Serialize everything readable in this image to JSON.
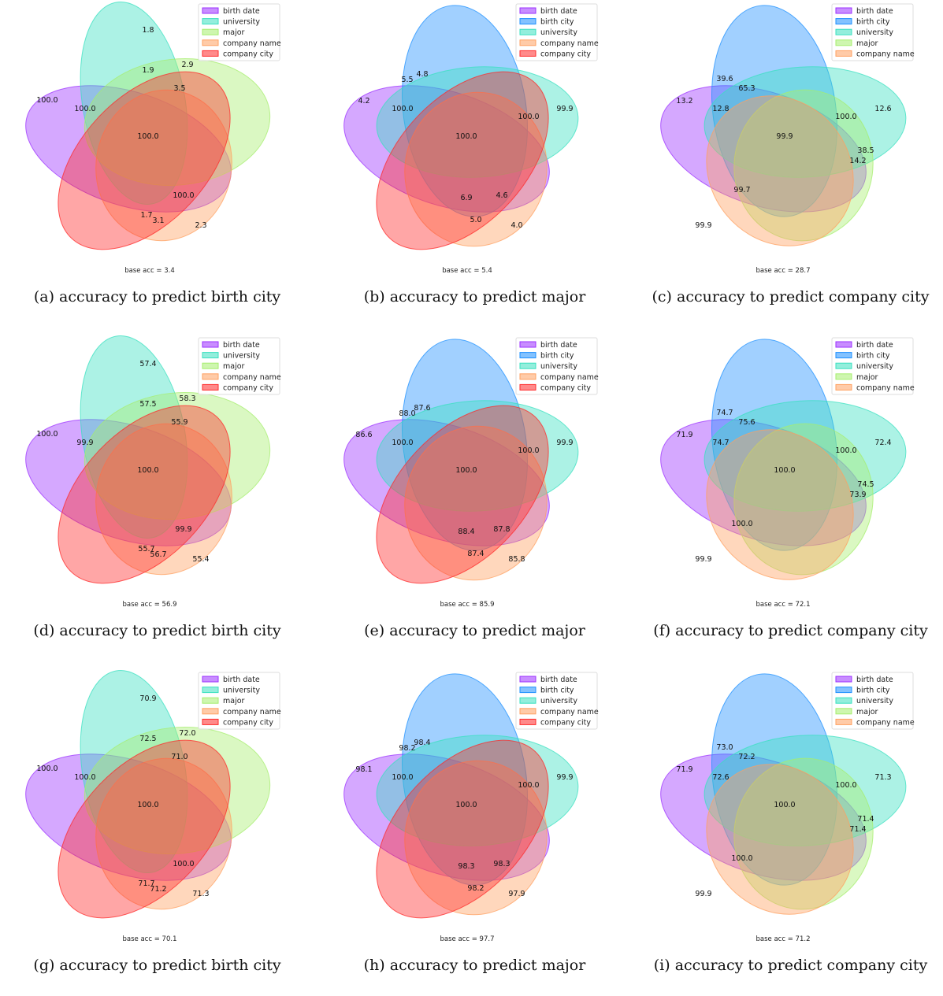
{
  "colors": {
    "birth date": "#9b30ff",
    "birth city": "#1e90ff",
    "university": "#3ae0c0",
    "major": "#a6ee6e",
    "company name": "#ffa060",
    "company city": "#ff2a2a"
  },
  "chart_data": [
    {
      "type": "venn",
      "variant": "A",
      "legend": [
        "birth date",
        "university",
        "major",
        "company name",
        "company city"
      ],
      "regions": {
        "only0": "100.0",
        "only1": "1.8",
        "only2": "",
        "only3": "2.3",
        "only4": "",
        "pair01": "100.0",
        "pair12": "2.9",
        "pair23": "3.5",
        "pair34": "3.1",
        "pair40": "",
        "pair02": "",
        "pair13": "1.9",
        "pair24": "1.7",
        "pair30": "100.0",
        "pair41": "",
        "center": "100.0"
      },
      "base": "base acc = 3.4",
      "caption": "(a) accuracy to predict birth city"
    },
    {
      "type": "venn",
      "variant": "B",
      "legend": [
        "birth date",
        "birth city",
        "university",
        "company name",
        "company city"
      ],
      "regions": {
        "only0": "4.2",
        "only1": "",
        "only2": "99.9",
        "only3": "4.0",
        "only4": "",
        "pair01": "5.5",
        "pair12": "",
        "pair23": "100.0",
        "pair34": "5.0",
        "pair40": "",
        "pair02": "100.0",
        "pair13": "4.8",
        "pair24": "",
        "pair30": "4.6",
        "pair41": "6.9",
        "center": "100.0"
      },
      "base": "base acc = 5.4",
      "caption": "(b) accuracy to predict major"
    },
    {
      "type": "venn",
      "variant": "C",
      "legend": [
        "birth date",
        "birth city",
        "university",
        "major",
        "company name"
      ],
      "regions": {
        "only0": "13.2",
        "only1": "",
        "only2": "12.6",
        "only3": "",
        "only4": "99.9",
        "pair01": "39.6",
        "pair12": "",
        "pair23": "38.5",
        "pair34": "",
        "pair40": "",
        "pair02": "12.8",
        "pair13": "65.3",
        "pair24": "100.0",
        "pair30": "14.2",
        "pair41": "99.7",
        "center": "99.9"
      },
      "base": "base acc = 28.7",
      "caption": "(c) accuracy to predict company city"
    },
    {
      "type": "venn",
      "variant": "A",
      "legend": [
        "birth date",
        "university",
        "major",
        "company name",
        "company city"
      ],
      "regions": {
        "only0": "100.0",
        "only1": "57.4",
        "only2": "",
        "only3": "55.4",
        "only4": "",
        "pair01": "99.9",
        "pair12": "58.3",
        "pair23": "55.9",
        "pair34": "56.7",
        "pair40": "",
        "pair02": "",
        "pair13": "57.5",
        "pair24": "55.7",
        "pair30": "99.9",
        "pair41": "",
        "center": "100.0"
      },
      "base": "base acc = 56.9",
      "caption": "(d) accuracy to predict birth city"
    },
    {
      "type": "venn",
      "variant": "B",
      "legend": [
        "birth date",
        "birth city",
        "university",
        "company name",
        "company city"
      ],
      "regions": {
        "only0": "86.6",
        "only1": "",
        "only2": "99.9",
        "only3": "85.8",
        "only4": "",
        "pair01": "88.0",
        "pair12": "",
        "pair23": "100.0",
        "pair34": "87.4",
        "pair40": "",
        "pair02": "100.0",
        "pair13": "87.6",
        "pair24": "",
        "pair30": "87.8",
        "pair41": "88.4",
        "center": "100.0"
      },
      "base": "base acc = 85.9",
      "caption": "(e) accuracy to predict major"
    },
    {
      "type": "venn",
      "variant": "C",
      "legend": [
        "birth date",
        "birth city",
        "university",
        "major",
        "company name"
      ],
      "regions": {
        "only0": "71.9",
        "only1": "",
        "only2": "72.4",
        "only3": "",
        "only4": "99.9",
        "pair01": "74.7",
        "pair12": "",
        "pair23": "74.5",
        "pair34": "",
        "pair40": "",
        "pair02": "74.7",
        "pair13": "75.6",
        "pair24": "100.0",
        "pair30": "73.9",
        "pair41": "100.0",
        "center": "100.0"
      },
      "base": "base acc = 72.1",
      "caption": "(f) accuracy to predict company city"
    },
    {
      "type": "venn",
      "variant": "A",
      "legend": [
        "birth date",
        "university",
        "major",
        "company name",
        "company city"
      ],
      "regions": {
        "only0": "100.0",
        "only1": "70.9",
        "only2": "",
        "only3": "71.3",
        "only4": "",
        "pair01": "100.0",
        "pair12": "72.0",
        "pair23": "71.0",
        "pair34": "71.2",
        "pair40": "",
        "pair02": "",
        "pair13": "72.5",
        "pair24": "71.7",
        "pair30": "100.0",
        "pair41": "",
        "center": "100.0"
      },
      "base": "base acc = 70.1",
      "caption": "(g) accuracy to predict birth city"
    },
    {
      "type": "venn",
      "variant": "B",
      "legend": [
        "birth date",
        "birth city",
        "university",
        "company name",
        "company city"
      ],
      "regions": {
        "only0": "98.1",
        "only1": "",
        "only2": "99.9",
        "only3": "97.9",
        "only4": "",
        "pair01": "98.2",
        "pair12": "",
        "pair23": "100.0",
        "pair34": "98.2",
        "pair40": "",
        "pair02": "100.0",
        "pair13": "98.4",
        "pair24": "",
        "pair30": "98.3",
        "pair41": "98.3",
        "center": "100.0"
      },
      "base": "base acc = 97.7",
      "caption": "(h) accuracy to predict major"
    },
    {
      "type": "venn",
      "variant": "C",
      "legend": [
        "birth date",
        "birth city",
        "university",
        "major",
        "company name"
      ],
      "regions": {
        "only0": "71.9",
        "only1": "",
        "only2": "71.3",
        "only3": "",
        "only4": "99.9",
        "pair01": "73.0",
        "pair12": "",
        "pair23": "71.4",
        "pair34": "",
        "pair40": "",
        "pair02": "72.6",
        "pair13": "72.2",
        "pair24": "100.0",
        "pair30": "71.4",
        "pair41": "100.0",
        "center": "100.0"
      },
      "base": "base acc = 71.2",
      "caption": "(i) accuracy to predict company city"
    }
  ]
}
